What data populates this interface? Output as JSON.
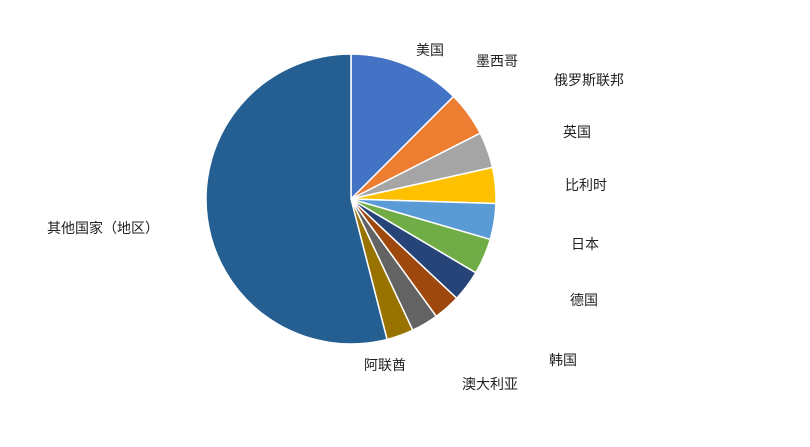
{
  "chart_data": {
    "type": "pie",
    "slices": [
      {
        "label": "美国",
        "value": 12.5,
        "color": "#4472c4"
      },
      {
        "label": "墨西哥",
        "value": 5.0,
        "color": "#ed7d31"
      },
      {
        "label": "俄罗斯联邦",
        "value": 4.0,
        "color": "#a5a5a5"
      },
      {
        "label": "英国",
        "value": 4.0,
        "color": "#ffc000"
      },
      {
        "label": "比利时",
        "value": 4.0,
        "color": "#5b9bd5"
      },
      {
        "label": "日本",
        "value": 4.0,
        "color": "#70ad47"
      },
      {
        "label": "德国",
        "value": 3.5,
        "color": "#264478"
      },
      {
        "label": "韩国",
        "value": 3.0,
        "color": "#9e480e"
      },
      {
        "label": "澳大利亚",
        "value": 3.0,
        "color": "#636363"
      },
      {
        "label": "阿联酋",
        "value": 3.0,
        "color": "#997300"
      },
      {
        "label": "其他国家（地区）",
        "value": 54.0,
        "color": "#255e91"
      }
    ],
    "start_angle_deg": 0,
    "direction": "clockwise",
    "slice_border_color": "#ffffff"
  }
}
